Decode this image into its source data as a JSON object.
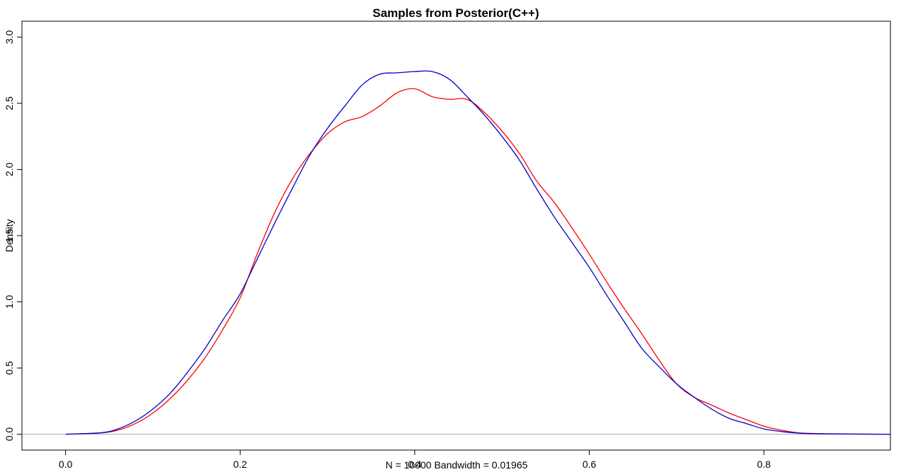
{
  "chart_data": {
    "type": "line",
    "title": "Samples from Posterior(C++)",
    "ylabel": "Density",
    "xlabel": "N = 10000   Bandwidth = 0.01965",
    "xlim": [
      -0.05,
      0.945
    ],
    "ylim": [
      -0.12,
      3.12
    ],
    "x_ticks": [
      0.0,
      0.2,
      0.4,
      0.6,
      0.8
    ],
    "x_tick_labels": [
      "0.0",
      "0.2",
      "0.4",
      "0.6",
      "0.8"
    ],
    "y_ticks": [
      0.0,
      0.5,
      1.0,
      1.5,
      2.0,
      2.5,
      3.0
    ],
    "y_tick_labels": [
      "0.0",
      "0.5",
      "1.0",
      "1.5",
      "2.0",
      "2.5",
      "3.0"
    ],
    "baseline": 0,
    "grid": false,
    "legend": "none",
    "series": [
      {
        "color": "#ff0000",
        "x": [
          0.0,
          0.04,
          0.06,
          0.08,
          0.1,
          0.12,
          0.14,
          0.16,
          0.18,
          0.2,
          0.22,
          0.24,
          0.26,
          0.28,
          0.3,
          0.32,
          0.34,
          0.36,
          0.38,
          0.4,
          0.42,
          0.44,
          0.46,
          0.48,
          0.5,
          0.52,
          0.54,
          0.56,
          0.58,
          0.6,
          0.62,
          0.64,
          0.66,
          0.68,
          0.7,
          0.72,
          0.74,
          0.76,
          0.78,
          0.8,
          0.82,
          0.84,
          0.86,
          0.9,
          0.945
        ],
        "y": [
          0.0,
          0.01,
          0.03,
          0.08,
          0.16,
          0.27,
          0.41,
          0.58,
          0.79,
          1.03,
          1.37,
          1.68,
          1.93,
          2.12,
          2.27,
          2.36,
          2.4,
          2.48,
          2.58,
          2.61,
          2.55,
          2.53,
          2.53,
          2.43,
          2.29,
          2.12,
          1.91,
          1.75,
          1.56,
          1.36,
          1.15,
          0.95,
          0.76,
          0.56,
          0.38,
          0.28,
          0.22,
          0.16,
          0.11,
          0.06,
          0.03,
          0.01,
          0.005,
          0.001,
          0.0
        ]
      },
      {
        "color": "#0000cc",
        "x": [
          0.0,
          0.04,
          0.06,
          0.08,
          0.1,
          0.12,
          0.14,
          0.16,
          0.18,
          0.2,
          0.22,
          0.24,
          0.26,
          0.28,
          0.3,
          0.32,
          0.34,
          0.36,
          0.38,
          0.4,
          0.42,
          0.44,
          0.46,
          0.48,
          0.5,
          0.52,
          0.54,
          0.56,
          0.58,
          0.6,
          0.62,
          0.64,
          0.66,
          0.68,
          0.7,
          0.72,
          0.74,
          0.76,
          0.78,
          0.8,
          0.82,
          0.84,
          0.86,
          0.9,
          0.945
        ],
        "y": [
          0.0,
          0.01,
          0.04,
          0.1,
          0.19,
          0.31,
          0.47,
          0.65,
          0.86,
          1.06,
          1.33,
          1.6,
          1.86,
          2.11,
          2.31,
          2.48,
          2.64,
          2.72,
          2.73,
          2.74,
          2.74,
          2.68,
          2.55,
          2.41,
          2.25,
          2.07,
          1.85,
          1.64,
          1.45,
          1.26,
          1.05,
          0.85,
          0.65,
          0.51,
          0.38,
          0.28,
          0.19,
          0.12,
          0.08,
          0.04,
          0.02,
          0.008,
          0.003,
          0.001,
          0.0
        ]
      }
    ]
  }
}
